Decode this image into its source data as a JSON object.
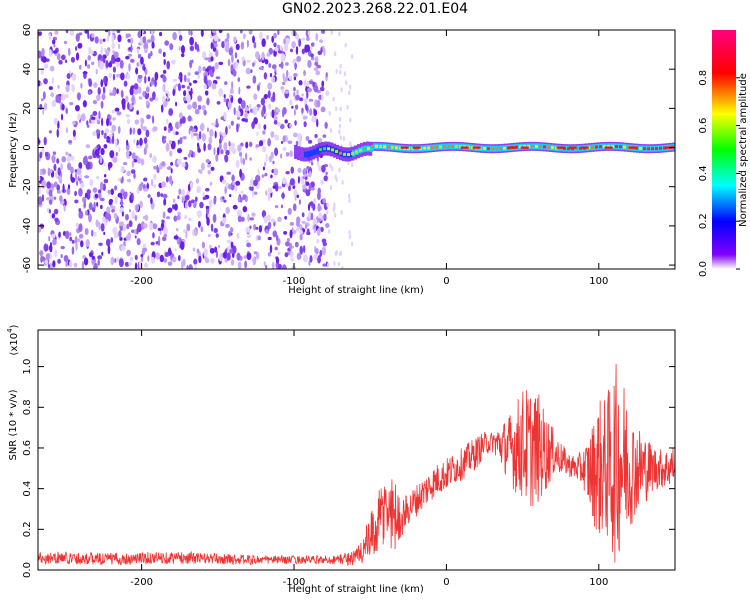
{
  "title": "GN02.2023.268.22.01.E04",
  "chart_data": [
    {
      "type": "heatmap",
      "xlabel": "Height of straight line (km)",
      "ylabel": "Frequency (Hz)",
      "xlim": [
        -268,
        150
      ],
      "ylim": [
        -62,
        60
      ],
      "xticks": [
        -200,
        -100,
        0,
        100
      ],
      "xtick_labels": [
        "-200",
        "-100",
        "0",
        "100"
      ],
      "yticks": [
        -60,
        -40,
        -20,
        0,
        20,
        40,
        60
      ],
      "ytick_labels": [
        "-60",
        "-40",
        "-20",
        "0",
        "20",
        "40",
        "60"
      ],
      "grid": false,
      "noise_region_x": [
        -268,
        -78
      ],
      "signal_band_x": [
        -100,
        150
      ],
      "signal_band_frequency": 0,
      "colorbar": {
        "label": "Normalized spectral amplitude",
        "range": [
          0,
          1
        ],
        "ticks": [
          0,
          0.2,
          0.4,
          0.6,
          0.8
        ],
        "tick_labels": [
          "0.0",
          "0.2",
          "0.4",
          "0.6",
          "0.8"
        ],
        "colors": [
          "#ffffff",
          "#8000ff",
          "#0000ff",
          "#00ffff",
          "#00ff00",
          "#ffff00",
          "#ff0000",
          "#ff0080"
        ]
      }
    },
    {
      "type": "line",
      "xlabel": "Height of straight line (km)",
      "ylabel": "SNR (10 * v/v)",
      "y_scale_label": "(x10",
      "y_scale_exponent": "4",
      "xlim": [
        -268,
        150
      ],
      "ylim": [
        0,
        1.18
      ],
      "xticks": [
        -200,
        -100,
        0,
        100
      ],
      "xtick_labels": [
        "-200",
        "-100",
        "0",
        "100"
      ],
      "yticks": [
        0,
        0.2,
        0.4,
        0.6,
        0.8,
        1.0
      ],
      "ytick_labels": [
        "0.0",
        "0.2",
        "0.4",
        "0.6",
        "0.8",
        "1.0"
      ],
      "grid": false,
      "series": [
        {
          "color": "#ee3333",
          "x": [
            -268,
            -250,
            -230,
            -210,
            -190,
            -170,
            -150,
            -130,
            -110,
            -90,
            -75,
            -60,
            -55,
            -50,
            -45,
            -40,
            -35,
            -30,
            -25,
            -20,
            -15,
            -10,
            -5,
            0,
            5,
            10,
            15,
            20,
            25,
            30,
            35,
            40,
            45,
            50,
            55,
            60,
            65,
            70,
            75,
            80,
            85,
            90,
            95,
            100,
            105,
            110,
            115,
            120,
            125,
            130,
            135,
            140,
            145,
            150
          ],
          "y": [
            0.06,
            0.06,
            0.055,
            0.055,
            0.06,
            0.06,
            0.055,
            0.05,
            0.05,
            0.05,
            0.05,
            0.06,
            0.1,
            0.15,
            0.22,
            0.3,
            0.28,
            0.25,
            0.3,
            0.34,
            0.38,
            0.42,
            0.45,
            0.47,
            0.5,
            0.52,
            0.55,
            0.58,
            0.62,
            0.63,
            0.62,
            0.6,
            0.6,
            0.62,
            0.6,
            0.6,
            0.58,
            0.58,
            0.55,
            0.52,
            0.5,
            0.5,
            0.48,
            0.5,
            0.5,
            0.52,
            0.55,
            0.5,
            0.5,
            0.5,
            0.5,
            0.5,
            0.5,
            0.52
          ],
          "noise_amplitude": [
            0.03,
            0.03,
            0.03,
            0.03,
            0.03,
            0.03,
            0.025,
            0.025,
            0.02,
            0.02,
            0.02,
            0.04,
            0.08,
            0.12,
            0.15,
            0.2,
            0.2,
            0.1,
            0.08,
            0.08,
            0.08,
            0.08,
            0.08,
            0.08,
            0.08,
            0.08,
            0.08,
            0.08,
            0.06,
            0.05,
            0.1,
            0.15,
            0.22,
            0.28,
            0.3,
            0.28,
            0.2,
            0.12,
            0.08,
            0.06,
            0.06,
            0.1,
            0.22,
            0.35,
            0.35,
            0.5,
            0.45,
            0.3,
            0.22,
            0.18,
            0.12,
            0.1,
            0.1,
            0.1
          ]
        }
      ]
    }
  ]
}
